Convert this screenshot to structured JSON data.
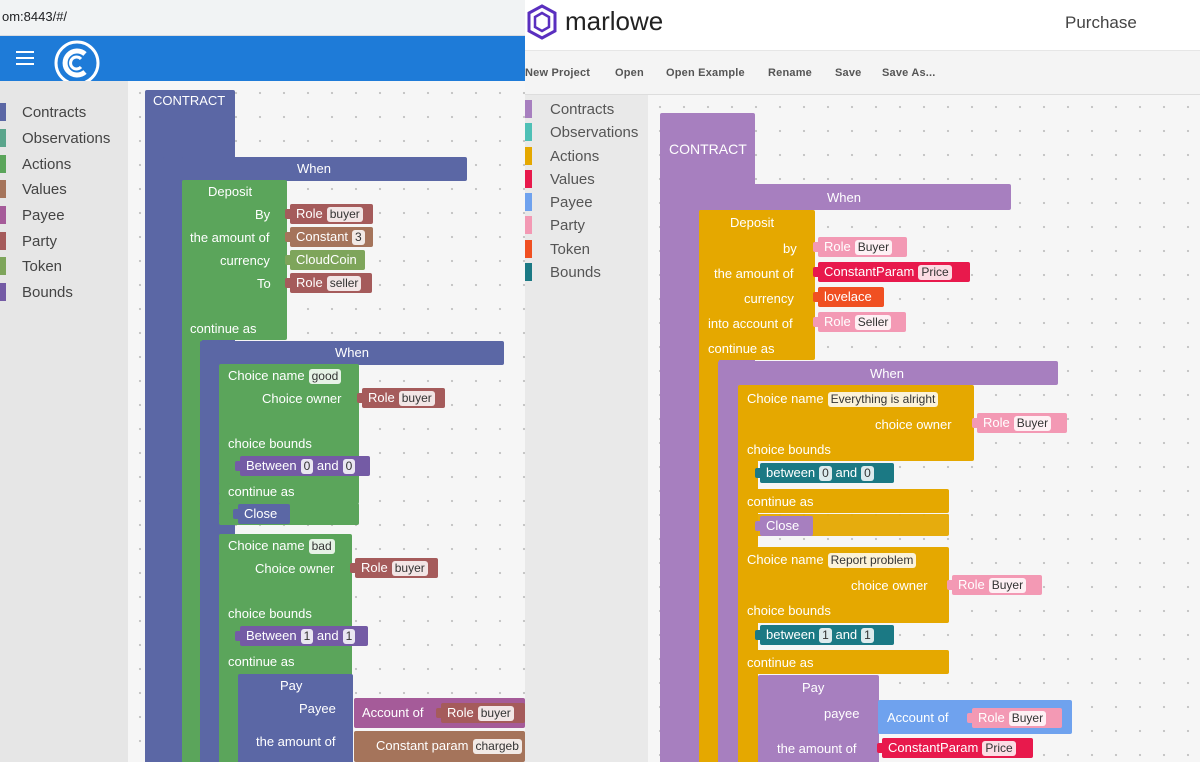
{
  "left": {
    "url": "om:8443/#/",
    "categories": [
      {
        "label": "Contracts",
        "color": "#5b67a5"
      },
      {
        "label": "Observations",
        "color": "#5ba58c"
      },
      {
        "label": "Actions",
        "color": "#5ba55b"
      },
      {
        "label": "Values",
        "color": "#a5745b"
      },
      {
        "label": "Payee",
        "color": "#a55b99"
      },
      {
        "label": "Party",
        "color": "#a55b5b"
      },
      {
        "label": "Token",
        "color": "#7ea55b"
      },
      {
        "label": "Bounds",
        "color": "#745ba5"
      }
    ],
    "blocks": {
      "contract": "CONTRACT",
      "when1": "When",
      "deposit": "Deposit",
      "by": "By",
      "role": "Role",
      "buyer": "buyer",
      "amount": "the amount of",
      "constant": "Constant",
      "three": "3",
      "currency": "currency",
      "cloudcoin": "CloudCoin",
      "to": "To",
      "seller": "seller",
      "continue_as": "continue as",
      "when2": "When",
      "choice_name": "Choice name",
      "good": "good",
      "choice_owner": "Choice owner",
      "choice_bounds": "choice bounds",
      "between": "Between",
      "zero": "0",
      "and": "and",
      "one": "1",
      "close": "Close",
      "bad": "bad",
      "pay": "Pay",
      "payee": "Payee",
      "account_of": "Account of",
      "constant_param": "Constant param",
      "chargeb": "chargeb"
    }
  },
  "right": {
    "brand": "marlowe",
    "project_title": "Purchase",
    "menu": [
      "New Project",
      "Open",
      "Open Example",
      "Rename",
      "Save",
      "Save As..."
    ],
    "categories": [
      {
        "label": "Contracts",
        "color": "#a77fbf"
      },
      {
        "label": "Observations",
        "color": "#4fc0b6"
      },
      {
        "label": "Actions",
        "color": "#e5a800"
      },
      {
        "label": "Values",
        "color": "#e8194c"
      },
      {
        "label": "Payee",
        "color": "#6fa2ee"
      },
      {
        "label": "Party",
        "color": "#f399b4"
      },
      {
        "label": "Token",
        "color": "#f05022"
      },
      {
        "label": "Bounds",
        "color": "#1b7984"
      }
    ],
    "blocks": {
      "contract": "CONTRACT",
      "when1": "When",
      "deposit": "Deposit",
      "by": "by",
      "role": "Role",
      "buyer": "Buyer",
      "amount": "the amount of",
      "constant_param": "ConstantParam",
      "price": "Price",
      "currency": "currency",
      "lovelace": "lovelace",
      "into_account": "into account of",
      "seller": "Seller",
      "continue_as": "continue as",
      "when2": "When",
      "choice_name": "Choice name",
      "alright": "Everything is alright",
      "choice_owner": "choice owner",
      "choice_bounds": "choice bounds",
      "between": "between",
      "zero": "0",
      "and": "and",
      "one": "1",
      "close": "Close",
      "report": "Report problem",
      "pay": "Pay",
      "payee": "payee",
      "account_of": "Account of"
    }
  }
}
